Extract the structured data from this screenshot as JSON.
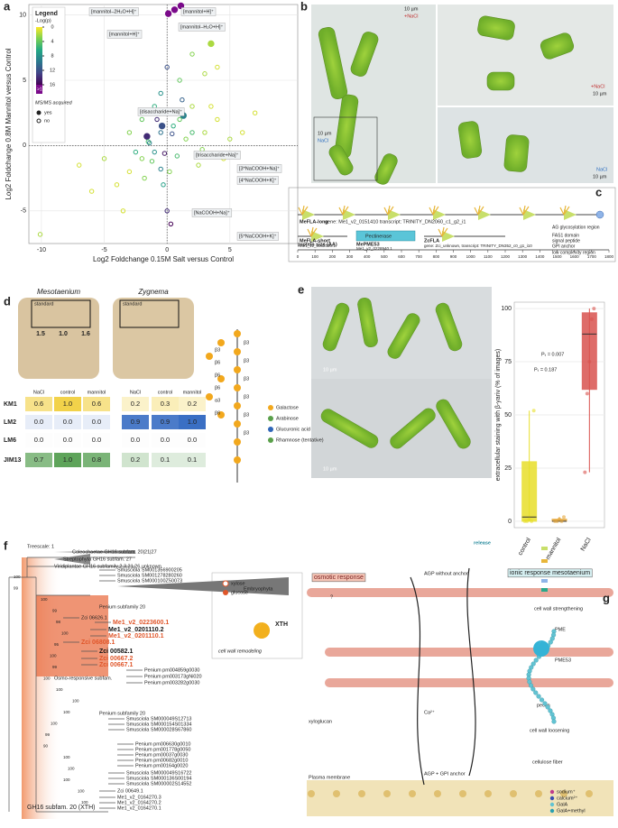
{
  "panel_a": {
    "letter": "a",
    "type": "scatter",
    "xlabel": "Log2 Foldchange 0.15M Salt versus Control",
    "ylabel": "Log2 Foldchange 0.8M Mannitol versus Control",
    "xlim": [
      -11,
      10.4
    ],
    "ylim": [
      -7.5,
      10.8
    ],
    "xticks": [
      -10,
      -5,
      0,
      5
    ],
    "yticks": [
      -5,
      0,
      5,
      10
    ],
    "legend": {
      "title": "Legend",
      "scale_title": "-Log(p)",
      "scale_ticks": [
        0,
        4,
        8,
        12,
        16
      ],
      "scale_max_label": ">16",
      "scale_colors": [
        "#fde725",
        "#7ad151",
        "#22a884",
        "#2a788e",
        "#414487",
        "#440154"
      ],
      "over_color": "#7a0a8a",
      "msms_title": "MS/MS acquired"
    },
    "series": [
      {
        "name": "yes",
        "x": [
          0.6,
          1.1,
          0.1,
          3.5,
          -0.4,
          1.3,
          -1.6
        ],
        "y": [
          10.4,
          10.7,
          10.1,
          7.8,
          1.5,
          2.3,
          0.7
        ],
        "p": [
          17,
          17,
          17,
          2,
          12,
          9,
          14
        ]
      },
      {
        "name": "no",
        "x": [
          -10.1,
          -3,
          -2,
          -1.5,
          -1,
          -0.5,
          0.5,
          1,
          1.5,
          2,
          -2.5,
          -1.2,
          0.8,
          0.2,
          -0.3,
          0,
          0.3,
          3,
          4,
          4.5,
          5,
          2.5,
          -4,
          -5,
          -6,
          0,
          1,
          2,
          3,
          1.5,
          -0.5,
          -1,
          -2,
          -3,
          1.2,
          0.7,
          -0.8,
          3.5,
          2,
          -1.8,
          -0.5,
          6,
          7,
          4,
          -3.5,
          -7,
          -0.2,
          0.4,
          -1.4,
          2.8
        ],
        "y": [
          -6.8,
          -2,
          -1,
          0.3,
          -0.5,
          1,
          1.5,
          2,
          0.5,
          3,
          -0.5,
          -1.2,
          -0.8,
          -2,
          -3,
          -5,
          -6,
          1,
          2,
          -1,
          0.5,
          -1.5,
          -3,
          -1,
          -3.5,
          6,
          5,
          7,
          5.5,
          9,
          4,
          3,
          2,
          1,
          3.5,
          2.5,
          2,
          3,
          1,
          -2.5,
          -1.8,
          1,
          2.5,
          6,
          -5,
          -1.5,
          -0.6,
          0.9,
          0.2,
          -0.3
        ],
        "p": [
          2,
          1,
          3,
          5,
          8,
          10,
          6,
          4,
          3,
          2,
          6,
          4,
          5,
          3,
          7,
          14,
          16,
          2,
          1,
          1,
          2,
          2,
          1,
          2,
          1,
          12,
          4,
          3,
          2,
          2,
          8,
          6,
          4,
          3,
          11,
          13,
          14,
          1,
          5,
          3,
          9,
          1,
          1,
          1,
          1,
          1,
          15,
          12,
          9,
          3
        ]
      }
    ],
    "annotations": [
      "[mannitol–2H₂O+H]⁺",
      "[mannitol+H]⁺",
      "[mannitol+H]⁺",
      "[mannitol–H₂O+H]⁺",
      "[trisaccharide+Na]⁺",
      "[disaccharide+Na]⁺",
      "[3*NaCOOH+Na]⁺",
      "[4*NaCOOH+K]⁺",
      "[NaCOOH+Na]⁺",
      "[5*NaCOOH+K]⁺"
    ]
  },
  "panel_b": {
    "letter": "b",
    "scale": "10 µm",
    "labels": [
      "+NaCl",
      "NaCl",
      "+NaCl",
      "NaCl"
    ]
  },
  "panel_c": {
    "letter": "c",
    "xlabel": "protein size (AA)",
    "xlim": [
      0,
      1800
    ],
    "xticks": [
      0,
      100,
      200,
      300,
      400,
      500,
      600,
      700,
      800,
      900,
      1000,
      1100,
      1200,
      1300,
      1400,
      1500,
      1600,
      1700,
      1800
    ],
    "proteins": [
      {
        "name": "MeFLA-long",
        "desc": "gene: Me1_v2_0151410 transcript: TRINITY_DN2060_c1_g2_i1"
      },
      {
        "name": "MeFLA-short",
        "desc": "Me1_v2_0082000.1"
      },
      {
        "name": "MePME53",
        "desc": "Me1_v2_0228940.1"
      },
      {
        "name": "ZcFLA",
        "desc": "gene: Zci_unknown, transcript: TRINITY_DN352_c0_g1_i10"
      }
    ],
    "domain_label": "Pectinerase",
    "legend": [
      "AG glycosylation region",
      "FAS1 domain",
      "signal peptide",
      "GPI anchor",
      "low complexity region"
    ]
  },
  "panel_d": {
    "letter": "d",
    "plates": [
      "Mesotaenium",
      "Zygnema"
    ],
    "standard": "standard",
    "plate_values": [
      "1.5",
      "1.0",
      "1.6"
    ],
    "columns": [
      "NaCl",
      "control",
      "mannitol",
      "NaCl",
      "control",
      "mannitol"
    ],
    "rows": [
      [
        "KM1",
        "0.6",
        "1.0",
        "0.6",
        "0.2",
        "0.3",
        "0.2"
      ],
      [
        "LM2",
        "0.0",
        "0.0",
        "0.0",
        "0.9",
        "0.9",
        "1.0"
      ],
      [
        "LM6",
        "0.0",
        "0.0",
        "0.0",
        "0.0",
        "0.0",
        "0.0"
      ],
      [
        "JIM13",
        "0.7",
        "1.0",
        "0.8",
        "0.2",
        "0.1",
        "0.1"
      ]
    ],
    "legend": [
      "Galactose",
      "Arabinose",
      "Glucuronic acid",
      "Rhamnose (tentative)"
    ],
    "linkages": [
      "β3",
      "β6",
      "β6",
      "β6",
      "α3",
      "β6",
      "β3",
      "β3",
      "β3",
      "β3",
      "β3",
      "β3"
    ]
  },
  "panel_e": {
    "letter": "e",
    "type": "box",
    "scale": "10 µm",
    "ylabel": "extracellular staining with β-yariv (% of images)",
    "ylim": [
      -3,
      103
    ],
    "yticks": [
      0,
      25,
      50,
      75,
      100
    ],
    "categories": [
      "control",
      "mannitol",
      "NaCl"
    ],
    "colors": [
      "#e8df2a",
      "#e4a73c",
      "#d9534f"
    ],
    "boxes": [
      [
        0,
        0,
        2,
        28,
        52
      ],
      [
        0,
        0,
        0,
        1,
        2
      ],
      [
        23,
        62,
        88,
        98,
        100
      ]
    ],
    "points": [
      [
        0,
        0,
        1,
        0,
        52
      ],
      [
        0,
        0,
        1,
        0,
        2
      ],
      [
        23,
        60,
        75,
        95,
        100
      ]
    ],
    "stats": [
      "Pₜ = 0.007",
      "Pₜ = 0.187"
    ]
  },
  "panel_f": {
    "letter": "f",
    "treescale": "Treescale: 1",
    "clades": [
      "Coleochaetae GH16 subfam. 20|21|27",
      "Streptophyta GH16 subfam. 27",
      "Viridiplantae GH16 subfamily 2,3,21,26,unknown",
      "Embryophyta",
      "Penium subfamily 20",
      "Osmo-responsive subfam.",
      "Penium subfamily 20",
      "GH16 subfam. 20 (XTH)"
    ],
    "leaves": [
      "Smusciola SM001356900205",
      "Smusciola SM001278280260",
      "Smusciola SM000100Z50073",
      "Zci 06626.1",
      "Me1_v2_0223600.1",
      "Me1_v2_0201110.2",
      "Me1_v2_0201110.1",
      "Zci 06808.1",
      "Zci 00582.1",
      "Zci 00667.2",
      "Zci 00667.1",
      "Penium pm004859g0030",
      "Penium pm003173gNi020",
      "Penium pm003282g0030",
      "Smusciola SM000049S12713",
      "Smusciola SM000154S01334",
      "Smusciola SM000028S67860",
      "Penium pm006630g0010",
      "Penium pm001778g0050",
      "Penium pm00037g0030",
      "Penium pm00682g0010",
      "Penium pm00164g0020",
      "Smusciola SM000049S16722",
      "Smusciola SM000136S00194",
      "Smusciola SM000002S14552",
      "Zci 00649.1",
      "Me1_v2_0164270.3",
      "Me1_v2_0164270.2",
      "Me1_v2_0164270.1"
    ],
    "bootstrap": [
      "100",
      "99",
      "100",
      "99",
      "98",
      "100",
      "95",
      "100",
      "99",
      "100",
      "100",
      "100",
      "100",
      "100",
      "99",
      "90",
      "100",
      "100",
      "100",
      "100",
      "100"
    ],
    "inset": [
      "xylose",
      "glucose",
      "XTH",
      "cell wall remodeling"
    ]
  },
  "panel_g": {
    "letter": "g",
    "labels": [
      "release",
      "osmotic response",
      "AGP without anchor",
      "ionic response mesotaenium",
      "?",
      "cell wall strengthening",
      "PME",
      "PME53",
      "cell wall loosening",
      "xyloglucan",
      "Ca²⁺",
      "pectin",
      "Plasma membrane",
      "AGP + GPI anchor",
      "cellulose fiber"
    ],
    "legend": [
      "sodium⁺",
      "calcium²⁺",
      "GalA",
      "GalA+methyl"
    ]
  }
}
